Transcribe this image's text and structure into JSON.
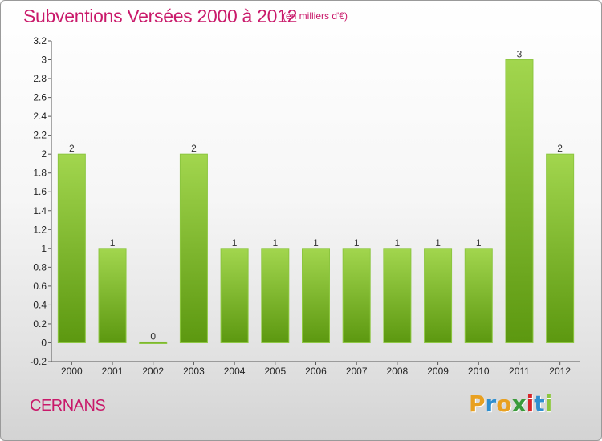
{
  "header": {
    "title": "Subventions Versées 2000 à 2012",
    "subtitle": "(en milliers d'€)"
  },
  "footer": {
    "place": "CERNANS",
    "brand": "Proxiti"
  },
  "colors": {
    "title": "#c9196a",
    "bar_light": "#9fd24a",
    "bar_dark": "#5e9a10",
    "brand_letters": [
      "#e8a020",
      "#2f8fd0",
      "#e8a020",
      "#3a9a3a",
      "#d8262a",
      "#2f8fd0",
      "#8cc63f"
    ]
  },
  "chart_data": {
    "type": "bar",
    "categories": [
      "2000",
      "2001",
      "2002",
      "2003",
      "2004",
      "2005",
      "2006",
      "2007",
      "2008",
      "2009",
      "2010",
      "2011",
      "2012"
    ],
    "values": [
      2,
      1,
      0,
      2,
      1,
      1,
      1,
      1,
      1,
      1,
      1,
      3,
      2
    ],
    "data_labels": [
      "2",
      "1",
      "0",
      "2",
      "1",
      "1",
      "1",
      "1",
      "1",
      "1",
      "1",
      "3",
      "2"
    ],
    "ylim": [
      -0.2,
      3.2
    ],
    "yticks": [
      "-0.2",
      "0",
      "0.2",
      "0.4",
      "0.6",
      "0.8",
      "1",
      "1.2",
      "1.4",
      "1.6",
      "1.8",
      "2",
      "2.2",
      "2.4",
      "2.6",
      "2.8",
      "3",
      "3.2"
    ],
    "ytick_values": [
      -0.2,
      0,
      0.2,
      0.4,
      0.6,
      0.8,
      1,
      1.2,
      1.4,
      1.6,
      1.8,
      2,
      2.2,
      2.4,
      2.6,
      2.8,
      3,
      3.2
    ],
    "grid": false
  }
}
